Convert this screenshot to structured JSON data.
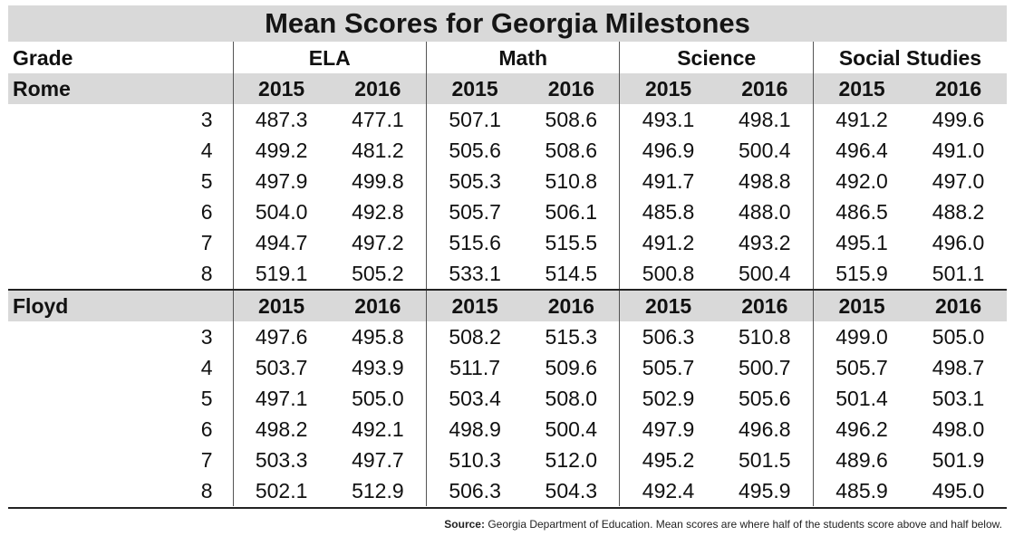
{
  "title": "Mean Scores for Georgia Milestones",
  "grade_label": "Grade",
  "subjects": [
    "ELA",
    "Math",
    "Science",
    "Social Studies"
  ],
  "years": [
    "2015",
    "2016"
  ],
  "source_label": "Source:",
  "source_text": " Georgia Department of Education. Mean scores are where half of the students score above and half below.",
  "chart_data": {
    "type": "table",
    "title": "Mean Scores for Georgia Milestones",
    "columns": [
      "ELA 2015",
      "ELA 2016",
      "Math 2015",
      "Math 2016",
      "Science 2015",
      "Science 2016",
      "Social Studies 2015",
      "Social Studies 2016"
    ],
    "groups": [
      {
        "name": "Rome",
        "rows": [
          {
            "grade": "3",
            "values": [
              "487.3",
              "477.1",
              "507.1",
              "508.6",
              "493.1",
              "498.1",
              "491.2",
              "499.6"
            ]
          },
          {
            "grade": "4",
            "values": [
              "499.2",
              "481.2",
              "505.6",
              "508.6",
              "496.9",
              "500.4",
              "496.4",
              "491.0"
            ]
          },
          {
            "grade": "5",
            "values": [
              "497.9",
              "499.8",
              "505.3",
              "510.8",
              "491.7",
              "498.8",
              "492.0",
              "497.0"
            ]
          },
          {
            "grade": "6",
            "values": [
              "504.0",
              "492.8",
              "505.7",
              "506.1",
              "485.8",
              "488.0",
              "486.5",
              "488.2"
            ]
          },
          {
            "grade": "7",
            "values": [
              "494.7",
              "497.2",
              "515.6",
              "515.5",
              "491.2",
              "493.2",
              "495.1",
              "496.0"
            ]
          },
          {
            "grade": "8",
            "values": [
              "519.1",
              "505.2",
              "533.1",
              "514.5",
              "500.8",
              "500.4",
              "515.9",
              "501.1"
            ]
          }
        ]
      },
      {
        "name": "Floyd",
        "rows": [
          {
            "grade": "3",
            "values": [
              "497.6",
              "495.8",
              "508.2",
              "515.3",
              "506.3",
              "510.8",
              "499.0",
              "505.0"
            ]
          },
          {
            "grade": "4",
            "values": [
              "503.7",
              "493.9",
              "511.7",
              "509.6",
              "505.7",
              "500.7",
              "505.7",
              "498.7"
            ]
          },
          {
            "grade": "5",
            "values": [
              "497.1",
              "505.0",
              "503.4",
              "508.0",
              "502.9",
              "505.6",
              "501.4",
              "503.1"
            ]
          },
          {
            "grade": "6",
            "values": [
              "498.2",
              "492.1",
              "498.9",
              "500.4",
              "497.9",
              "496.8",
              "496.2",
              "498.0"
            ]
          },
          {
            "grade": "7",
            "values": [
              "503.3",
              "497.7",
              "510.3",
              "512.0",
              "495.2",
              "501.5",
              "489.6",
              "501.9"
            ]
          },
          {
            "grade": "8",
            "values": [
              "502.1",
              "512.9",
              "506.3",
              "504.3",
              "492.4",
              "495.9",
              "485.9",
              "495.0"
            ]
          }
        ]
      }
    ]
  }
}
